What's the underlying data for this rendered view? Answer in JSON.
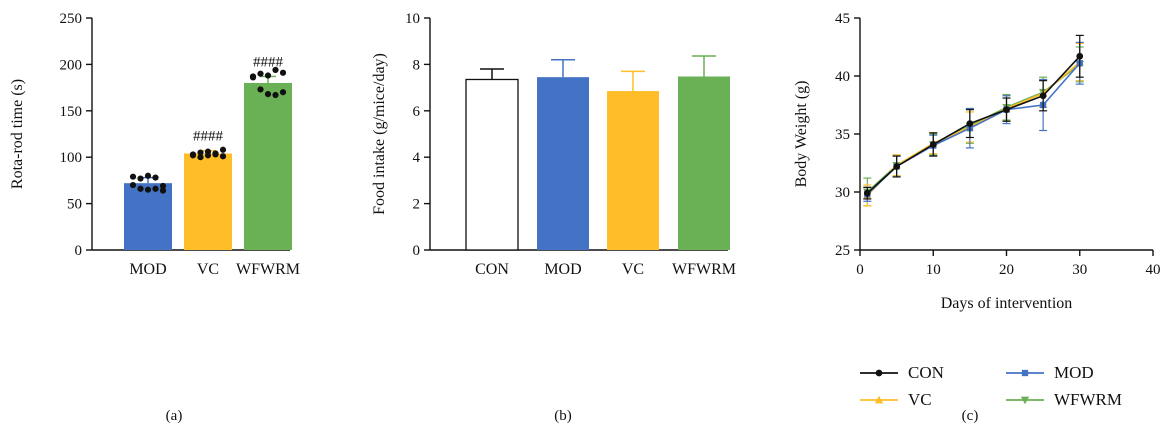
{
  "chart_data": [
    {
      "panel_label": "(a)",
      "type": "bar",
      "categories": [
        "MOD",
        "VC",
        "WFWRM"
      ],
      "values": [
        72,
        104,
        180
      ],
      "errors": [
        6,
        3,
        7
      ],
      "colors": [
        "#4472C4",
        "#FFBE27",
        "#6AB155"
      ],
      "significance": [
        "",
        "####",
        "####"
      ],
      "points": [
        [
          79,
          77,
          80,
          78,
          69,
          70,
          66,
          65,
          66,
          64
        ],
        [
          102,
          105,
          106,
          104,
          101,
          103,
          100,
          102,
          103,
          108
        ],
        [
          186,
          190,
          188,
          194,
          191,
          187,
          173,
          168,
          167,
          170
        ]
      ],
      "ylabel": "Rota-rod time (s)",
      "ylim": [
        0,
        250
      ],
      "yticks": [
        0,
        50,
        100,
        150,
        200,
        250
      ]
    },
    {
      "panel_label": "(b)",
      "type": "bar",
      "categories": [
        "CON",
        "MOD",
        "VC",
        "WFWRM"
      ],
      "values": [
        7.35,
        7.45,
        6.85,
        7.48
      ],
      "errors": [
        0.45,
        0.75,
        0.85,
        0.88
      ],
      "colors": [
        "#FFFFFF",
        "#4472C4",
        "#FFBE27",
        "#6AB155"
      ],
      "ylabel": "Food intake (g/mice/day)",
      "ylim": [
        0,
        10
      ],
      "yticks": [
        0,
        2,
        4,
        6,
        8,
        10
      ]
    },
    {
      "panel_label": "(c)",
      "type": "line",
      "x": [
        1,
        5,
        10,
        15,
        20,
        25,
        30
      ],
      "series": [
        {
          "name": "CON",
          "color": "#111111",
          "marker": "circle",
          "values": [
            29.9,
            32.2,
            34.1,
            35.9,
            37.1,
            38.3,
            41.7
          ],
          "errors": [
            0.5,
            0.9,
            1.0,
            1.2,
            1.0,
            1.3,
            1.8
          ]
        },
        {
          "name": "MOD",
          "color": "#4472C4",
          "marker": "square",
          "values": [
            29.8,
            32.2,
            34.0,
            35.5,
            37.1,
            37.5,
            41.1
          ],
          "errors": [
            0.6,
            0.9,
            0.9,
            1.7,
            1.2,
            2.2,
            1.8
          ]
        },
        {
          "name": "VC",
          "color": "#FFBE27",
          "marker": "triangle-up",
          "values": [
            29.7,
            32.3,
            34.2,
            35.6,
            37.2,
            38.5,
            41.2
          ],
          "errors": [
            0.9,
            0.9,
            0.9,
            1.3,
            1.1,
            1.2,
            1.6
          ]
        },
        {
          "name": "WFWRM",
          "color": "#6AB155",
          "marker": "triangle-down",
          "values": [
            30.0,
            32.3,
            34.1,
            35.7,
            37.3,
            38.6,
            41.0
          ],
          "errors": [
            1.2,
            0.9,
            0.9,
            1.5,
            1.1,
            1.3,
            1.5
          ]
        }
      ],
      "xlabel": "Days of intervention",
      "ylabel": "Body Weight (g)",
      "xlim": [
        0,
        40
      ],
      "ylim": [
        25,
        45
      ],
      "xticks": [
        0,
        10,
        20,
        30,
        40
      ],
      "yticks": [
        25,
        30,
        35,
        40,
        45
      ],
      "legend_position": "bottom"
    }
  ]
}
